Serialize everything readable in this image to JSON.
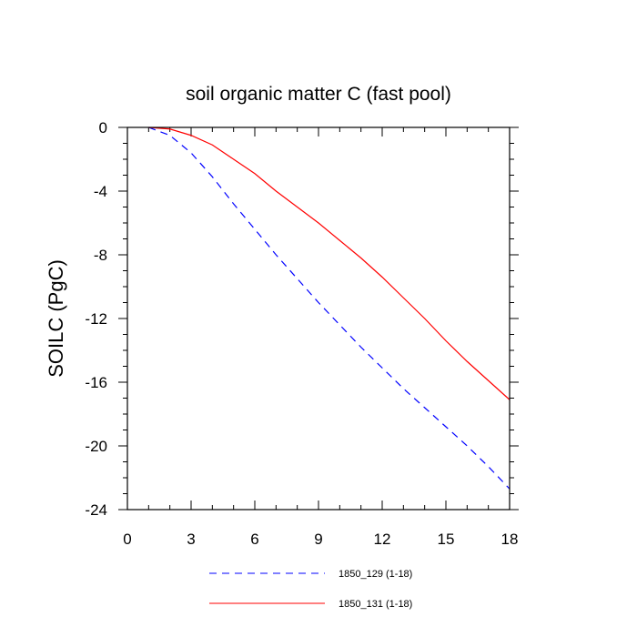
{
  "chart_data": {
    "type": "line",
    "title": "soil organic matter C (fast pool)",
    "xlabel": "",
    "ylabel": "SOILC  (PgC)",
    "xlim": [
      0,
      18
    ],
    "ylim": [
      -24,
      0
    ],
    "xticks": [
      0,
      3,
      6,
      9,
      12,
      15,
      18
    ],
    "yticks": [
      0,
      -4,
      -8,
      -12,
      -16,
      -20,
      -24
    ],
    "x": [
      1,
      2,
      3,
      4,
      5,
      6,
      7,
      8,
      9,
      10,
      11,
      12,
      13,
      14,
      15,
      16,
      17,
      18
    ],
    "series": [
      {
        "name": "1850_129 (1-18)",
        "color": "#0000ff",
        "dash": "dashed",
        "values": [
          0,
          -0.5,
          -1.6,
          -3.1,
          -4.8,
          -6.4,
          -8.0,
          -9.5,
          -11.0,
          -12.4,
          -13.8,
          -15.1,
          -16.4,
          -17.6,
          -18.8,
          -20.0,
          -21.3,
          -22.7
        ]
      },
      {
        "name": "1850_131 (1-18)",
        "color": "#ff0000",
        "dash": "solid",
        "values": [
          0,
          -0.1,
          -0.5,
          -1.1,
          -2.0,
          -2.9,
          -4.0,
          -5.0,
          -6.0,
          -7.1,
          -8.2,
          -9.4,
          -10.7,
          -12.0,
          -13.4,
          -14.7,
          -15.9,
          -17.1
        ]
      }
    ]
  }
}
